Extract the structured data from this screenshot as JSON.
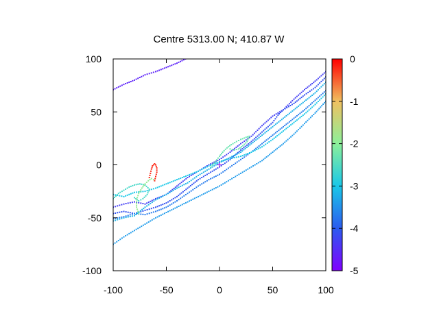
{
  "chart_data": {
    "type": "scatter",
    "title": "Centre 5313.00 N; 410.87  W",
    "xlabel": "",
    "ylabel": "",
    "xlim": [
      -100,
      100
    ],
    "ylim": [
      -100,
      100
    ],
    "x_ticks": [
      -100,
      -50,
      0,
      50,
      100
    ],
    "y_ticks": [
      -100,
      -50,
      0,
      50,
      100
    ],
    "grid": false,
    "colorbar": {
      "range": [
        -5,
        0
      ],
      "ticks": [
        0,
        -1,
        -2,
        -3,
        -4,
        -5
      ],
      "palette": [
        "#8000ff",
        "#2c5bef",
        "#1ac8e8",
        "#8cf09a",
        "#f0c060",
        "#ff0000"
      ]
    },
    "centre_marker": {
      "x": 0,
      "y": 0,
      "color": "#a020f0"
    },
    "series": [
      {
        "c": -4.6,
        "points": [
          [
            -100,
            71
          ],
          [
            -90,
            76
          ],
          [
            -80,
            80
          ],
          [
            -70,
            85
          ],
          [
            -60,
            88
          ],
          [
            -50,
            92
          ],
          [
            -40,
            96
          ],
          [
            -32,
            100
          ]
        ]
      },
      {
        "c": -4.3,
        "points": [
          [
            -100,
            -40
          ],
          [
            -90,
            -37
          ],
          [
            -80,
            -35
          ],
          [
            -70,
            -37
          ],
          [
            -60,
            -32
          ],
          [
            -50,
            -28
          ],
          [
            -40,
            -20
          ],
          [
            -30,
            -12
          ],
          [
            -20,
            -6
          ],
          [
            -10,
            0
          ],
          [
            0,
            5
          ],
          [
            10,
            12
          ],
          [
            20,
            20
          ],
          [
            30,
            27
          ],
          [
            40,
            37
          ],
          [
            50,
            46
          ],
          [
            60,
            52
          ],
          [
            70,
            62
          ],
          [
            80,
            71
          ],
          [
            90,
            79
          ],
          [
            100,
            88
          ]
        ]
      },
      {
        "c": -4.1,
        "points": [
          [
            -100,
            -46
          ],
          [
            -90,
            -44
          ],
          [
            -80,
            -46
          ],
          [
            -70,
            -43
          ],
          [
            -60,
            -40
          ],
          [
            -50,
            -36
          ],
          [
            -40,
            -30
          ],
          [
            -30,
            -22
          ],
          [
            -20,
            -14
          ],
          [
            -10,
            -8
          ],
          [
            0,
            -2
          ],
          [
            10,
            5
          ],
          [
            20,
            14
          ],
          [
            30,
            22
          ],
          [
            40,
            31
          ],
          [
            50,
            40
          ],
          [
            55,
            47
          ],
          [
            60,
            52
          ],
          [
            70,
            58
          ],
          [
            80,
            66
          ],
          [
            90,
            73
          ],
          [
            100,
            83
          ]
        ]
      },
      {
        "c": -3.7,
        "points": [
          [
            -100,
            -51
          ],
          [
            -90,
            -49
          ],
          [
            -80,
            -46
          ],
          [
            -70,
            -47
          ],
          [
            -60,
            -44
          ],
          [
            -50,
            -40
          ],
          [
            -40,
            -34
          ],
          [
            -30,
            -27
          ],
          [
            -20,
            -20
          ],
          [
            -10,
            -14
          ],
          [
            0,
            -9
          ],
          [
            10,
            -2
          ],
          [
            20,
            5
          ],
          [
            30,
            12
          ],
          [
            40,
            20
          ],
          [
            50,
            28
          ],
          [
            60,
            36
          ],
          [
            70,
            44
          ],
          [
            80,
            52
          ],
          [
            90,
            61
          ],
          [
            100,
            70
          ]
        ]
      },
      {
        "c": -3.4,
        "points": [
          [
            -100,
            -75
          ],
          [
            -90,
            -68
          ],
          [
            -80,
            -62
          ],
          [
            -70,
            -56
          ],
          [
            -60,
            -50
          ],
          [
            -50,
            -45
          ],
          [
            -40,
            -40
          ],
          [
            -30,
            -35
          ],
          [
            -20,
            -30
          ],
          [
            -10,
            -25
          ],
          [
            0,
            -20
          ],
          [
            10,
            -14
          ],
          [
            20,
            -8
          ],
          [
            30,
            -2
          ],
          [
            40,
            4
          ],
          [
            50,
            12
          ],
          [
            60,
            20
          ],
          [
            70,
            29
          ],
          [
            80,
            39
          ],
          [
            90,
            49
          ],
          [
            100,
            60
          ]
        ]
      },
      {
        "c": -3.0,
        "points": [
          [
            -100,
            -28
          ],
          [
            -90,
            -30
          ],
          [
            -80,
            -26
          ],
          [
            -70,
            -25
          ],
          [
            -60,
            -22
          ],
          [
            -50,
            -18
          ],
          [
            -40,
            -14
          ],
          [
            -30,
            -10
          ],
          [
            -20,
            -6
          ],
          [
            -10,
            -1
          ],
          [
            0,
            3
          ],
          [
            10,
            6
          ],
          [
            20,
            8
          ],
          [
            30,
            12
          ],
          [
            40,
            17
          ],
          [
            50,
            24
          ],
          [
            60,
            32
          ],
          [
            70,
            40
          ],
          [
            80,
            48
          ],
          [
            90,
            57
          ],
          [
            100,
            67
          ]
        ]
      },
      {
        "c": -3.2,
        "points": [
          [
            -100,
            -53
          ],
          [
            -90,
            -50
          ],
          [
            -80,
            -48
          ],
          [
            -70,
            -40
          ],
          [
            -60,
            -33
          ],
          [
            -50,
            -28
          ],
          [
            -40,
            -22
          ],
          [
            -30,
            -17
          ],
          [
            -20,
            -10
          ],
          [
            -10,
            -4
          ],
          [
            0,
            2
          ],
          [
            10,
            7
          ],
          [
            20,
            12
          ],
          [
            30,
            20
          ],
          [
            40,
            28
          ],
          [
            50,
            36
          ],
          [
            60,
            44
          ],
          [
            70,
            52
          ],
          [
            80,
            60
          ],
          [
            90,
            68
          ],
          [
            100,
            78
          ]
        ]
      },
      {
        "c": -2.6,
        "points": [
          [
            -100,
            -32
          ],
          [
            -95,
            -27
          ],
          [
            -90,
            -24
          ],
          [
            -85,
            -21
          ],
          [
            -80,
            -19
          ],
          [
            -75,
            -18
          ],
          [
            -70,
            -19
          ],
          [
            -66,
            -23
          ],
          [
            -68,
            -28
          ],
          [
            -72,
            -32
          ],
          [
            -76,
            -34
          ],
          [
            -80,
            -31
          ]
        ]
      },
      {
        "c": -2.3,
        "points": [
          [
            -8,
            -2
          ],
          [
            -4,
            3
          ],
          [
            0,
            8
          ],
          [
            3,
            12
          ],
          [
            7,
            16
          ],
          [
            11,
            19
          ],
          [
            16,
            22
          ],
          [
            20,
            24
          ],
          [
            25,
            26
          ],
          [
            28,
            27
          ],
          [
            26,
            22
          ],
          [
            22,
            18
          ],
          [
            18,
            15
          ],
          [
            14,
            14
          ],
          [
            10,
            15
          ]
        ]
      },
      {
        "c": -0.2,
        "points": [
          [
            -66,
            -12
          ],
          [
            -65,
            -8
          ],
          [
            -64,
            -4
          ],
          [
            -63,
            -1
          ],
          [
            -62,
            0
          ],
          [
            -61,
            1
          ],
          [
            -60,
            0
          ],
          [
            -59,
            -3
          ],
          [
            -59,
            -7
          ],
          [
            -60,
            -11
          ],
          [
            -61,
            -15
          ]
        ]
      },
      {
        "c": -1.9,
        "points": [
          [
            -76,
            -46
          ],
          [
            -78,
            -40
          ],
          [
            -78,
            -33
          ],
          [
            -76,
            -27
          ],
          [
            -73,
            -22
          ],
          [
            -70,
            -18
          ],
          [
            -67,
            -15
          ],
          [
            -64,
            -13
          ],
          [
            -62,
            -14
          ]
        ]
      }
    ]
  }
}
